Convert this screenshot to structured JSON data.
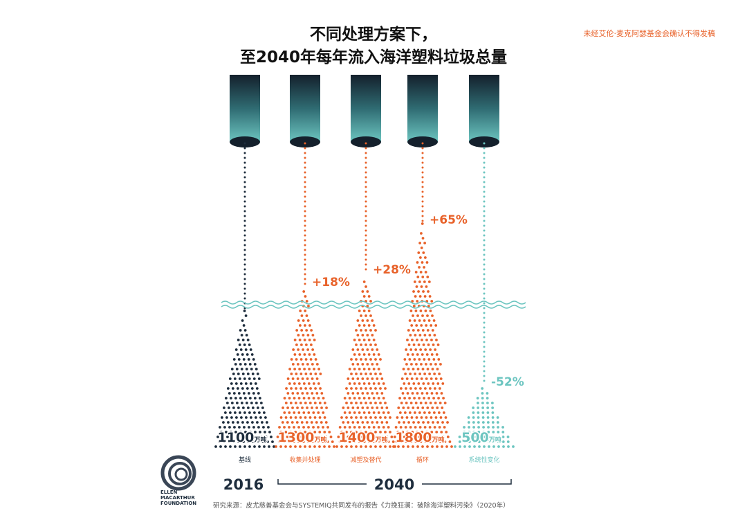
{
  "title_line1": "不同处理方案下，",
  "title_line2": "至2040年每年流入海洋塑料垃圾总量",
  "watermark": "未经艾伦·麦克阿瑟基金会确认不得发稿",
  "source": "研究来源：皮尤慈善基金会与SYSTEMIQ共同发布的报告《力挽狂澜：破除海洋塑料污染》（2020年）",
  "logo": {
    "line1": "ELLEN",
    "line2": "MACARTHUR",
    "line3": "FOUNDATION"
  },
  "colors": {
    "baseline": "#1e2d3d",
    "increase": "#e8622a",
    "decrease": "#6cc5c0"
  },
  "chart_data": {
    "type": "bar",
    "unit": "万吨",
    "categories": [
      "基线",
      "收集并处理",
      "减塑及替代",
      "循环",
      "系统性变化"
    ],
    "values": [
      1100,
      1300,
      1400,
      1800,
      500
    ],
    "value_labels": [
      "1100",
      "1300",
      "1400",
      "1800",
      "500"
    ],
    "changes": [
      "",
      "+18%",
      "+28%",
      "+65%",
      "-52%"
    ],
    "years": {
      "baseline": "2016",
      "scenarios": "2040"
    }
  }
}
